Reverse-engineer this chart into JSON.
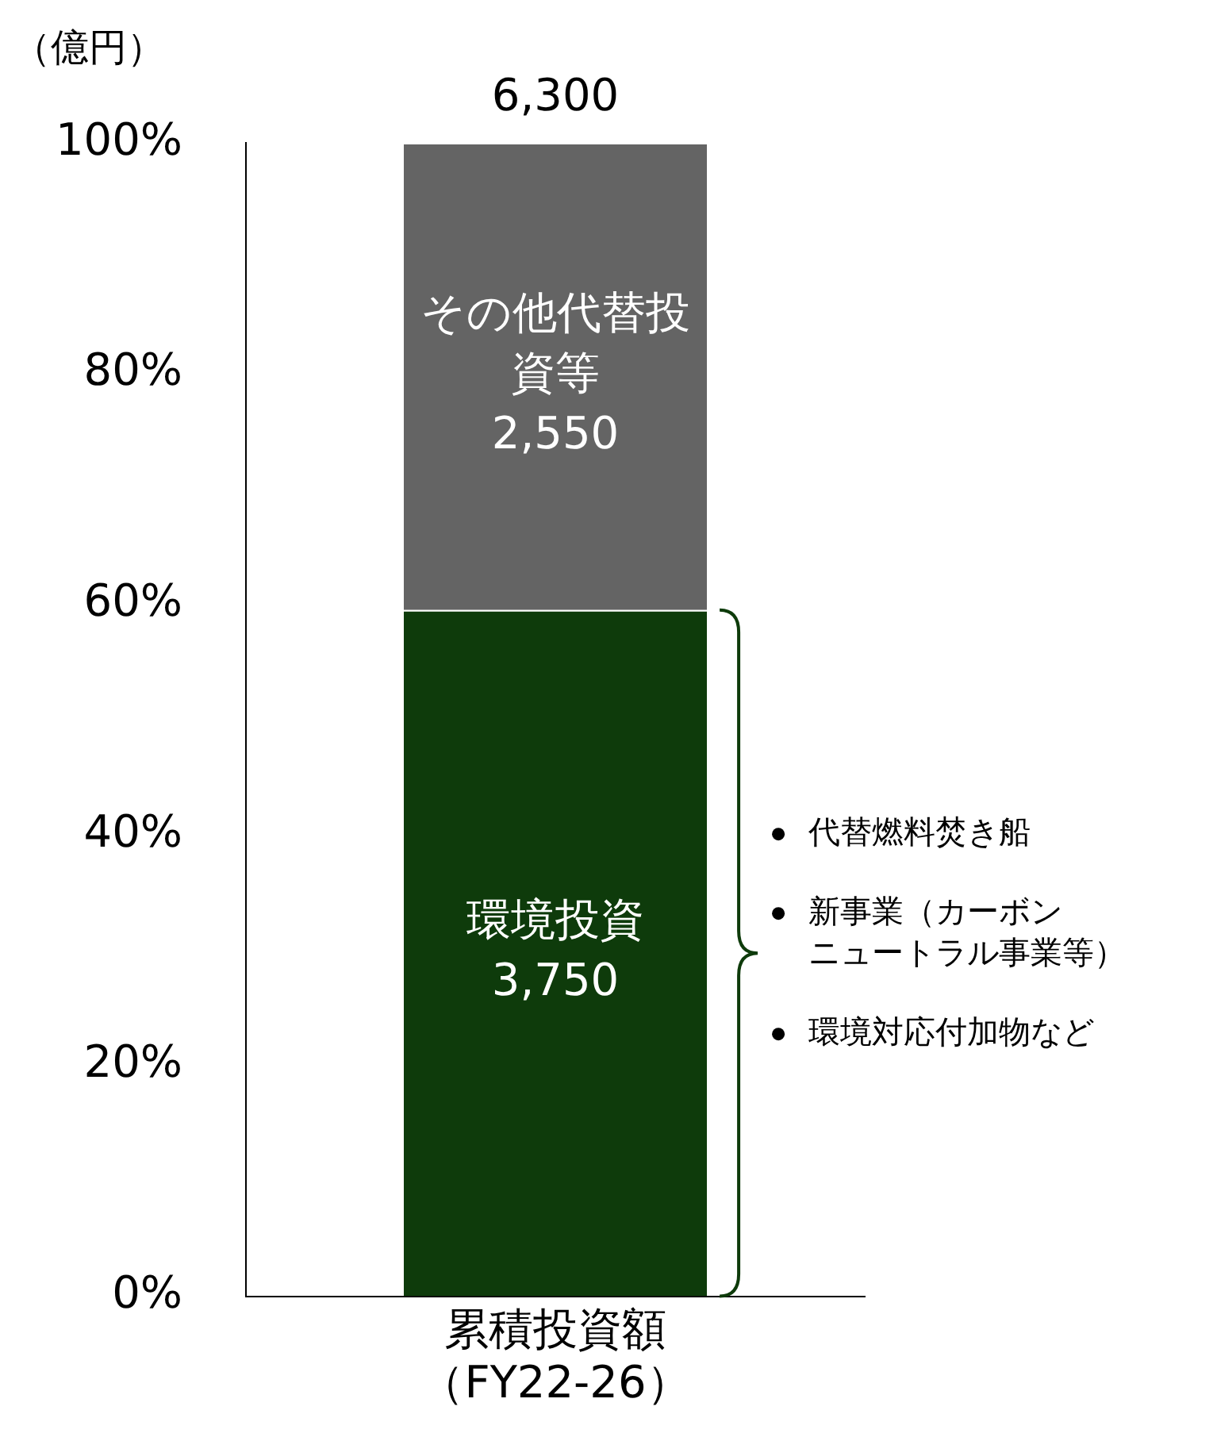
{
  "chart_data": {
    "type": "bar",
    "stacked": true,
    "categories": [
      "累積投資額（FY22-26）"
    ],
    "series": [
      {
        "name": "環境投資",
        "color": "#0e3b0b",
        "values": [
          59.5
        ]
      },
      {
        "name": "その他代替投資等",
        "color": "#646464",
        "values": [
          40.5
        ]
      }
    ],
    "ylim": [
      0,
      100
    ],
    "yticks": [
      {
        "value": 0,
        "label": "0%"
      },
      {
        "value": 20,
        "label": "20%"
      },
      {
        "value": 40,
        "label": "40%"
      },
      {
        "value": 60,
        "label": "60%"
      },
      {
        "value": 80,
        "label": "80%"
      },
      {
        "value": 100,
        "label": "100%"
      }
    ],
    "legend": false,
    "annotations": [
      "（億円）",
      "3,750",
      "2,550",
      {
        "text": "6,300",
        "x": "累積投資額（FY22-26）",
        "y": 100
      },
      "代替燃料焚き船",
      "新事業（カーボンニュートラル事業等）",
      "環境対応付加物など"
    ]
  }
}
